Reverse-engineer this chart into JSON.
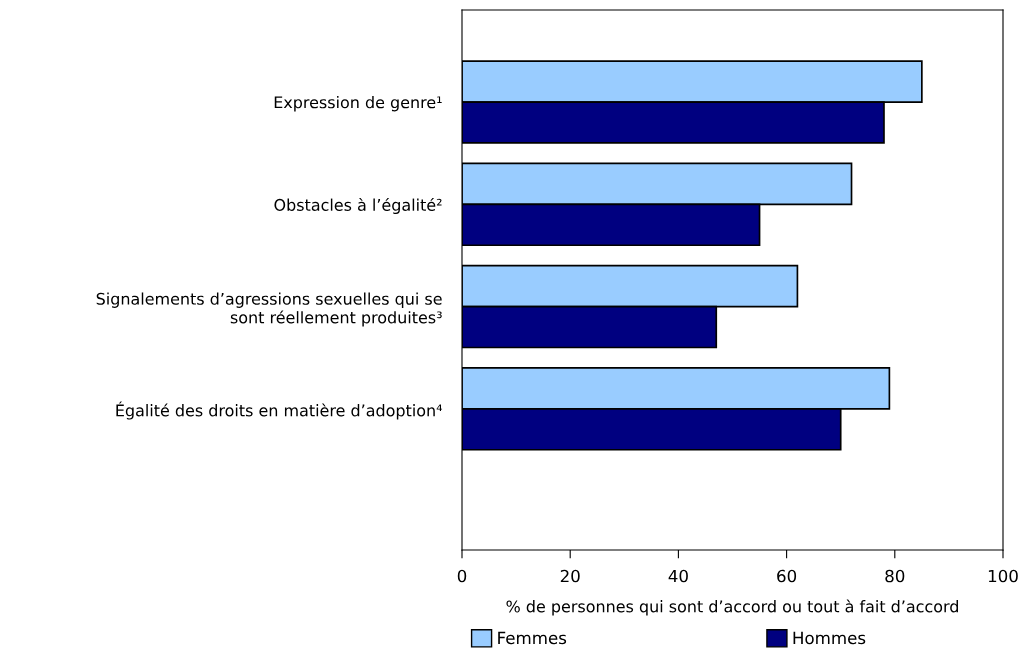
{
  "chart_data": {
    "type": "bar",
    "orientation": "horizontal",
    "categories": [
      "Expression de genre¹",
      "Obstacles à l’égalité²",
      "Signalements d’agressions sexuelles qui se\nsont réellement produites³",
      "Égalité des droits en matière d’adoption⁴"
    ],
    "series": [
      {
        "name": "Femmes",
        "color": "#99ccff",
        "values": [
          85,
          72,
          62,
          79
        ]
      },
      {
        "name": "Hommes",
        "color": "#000080",
        "values": [
          78,
          55,
          47,
          70
        ]
      }
    ],
    "xlabel": "% de personnes qui sont d’accord ou tout à fait d’accord",
    "xlim": [
      0,
      100
    ],
    "xticks": [
      0,
      20,
      40,
      60,
      80,
      100
    ],
    "grid": false,
    "legend": "bottom"
  }
}
